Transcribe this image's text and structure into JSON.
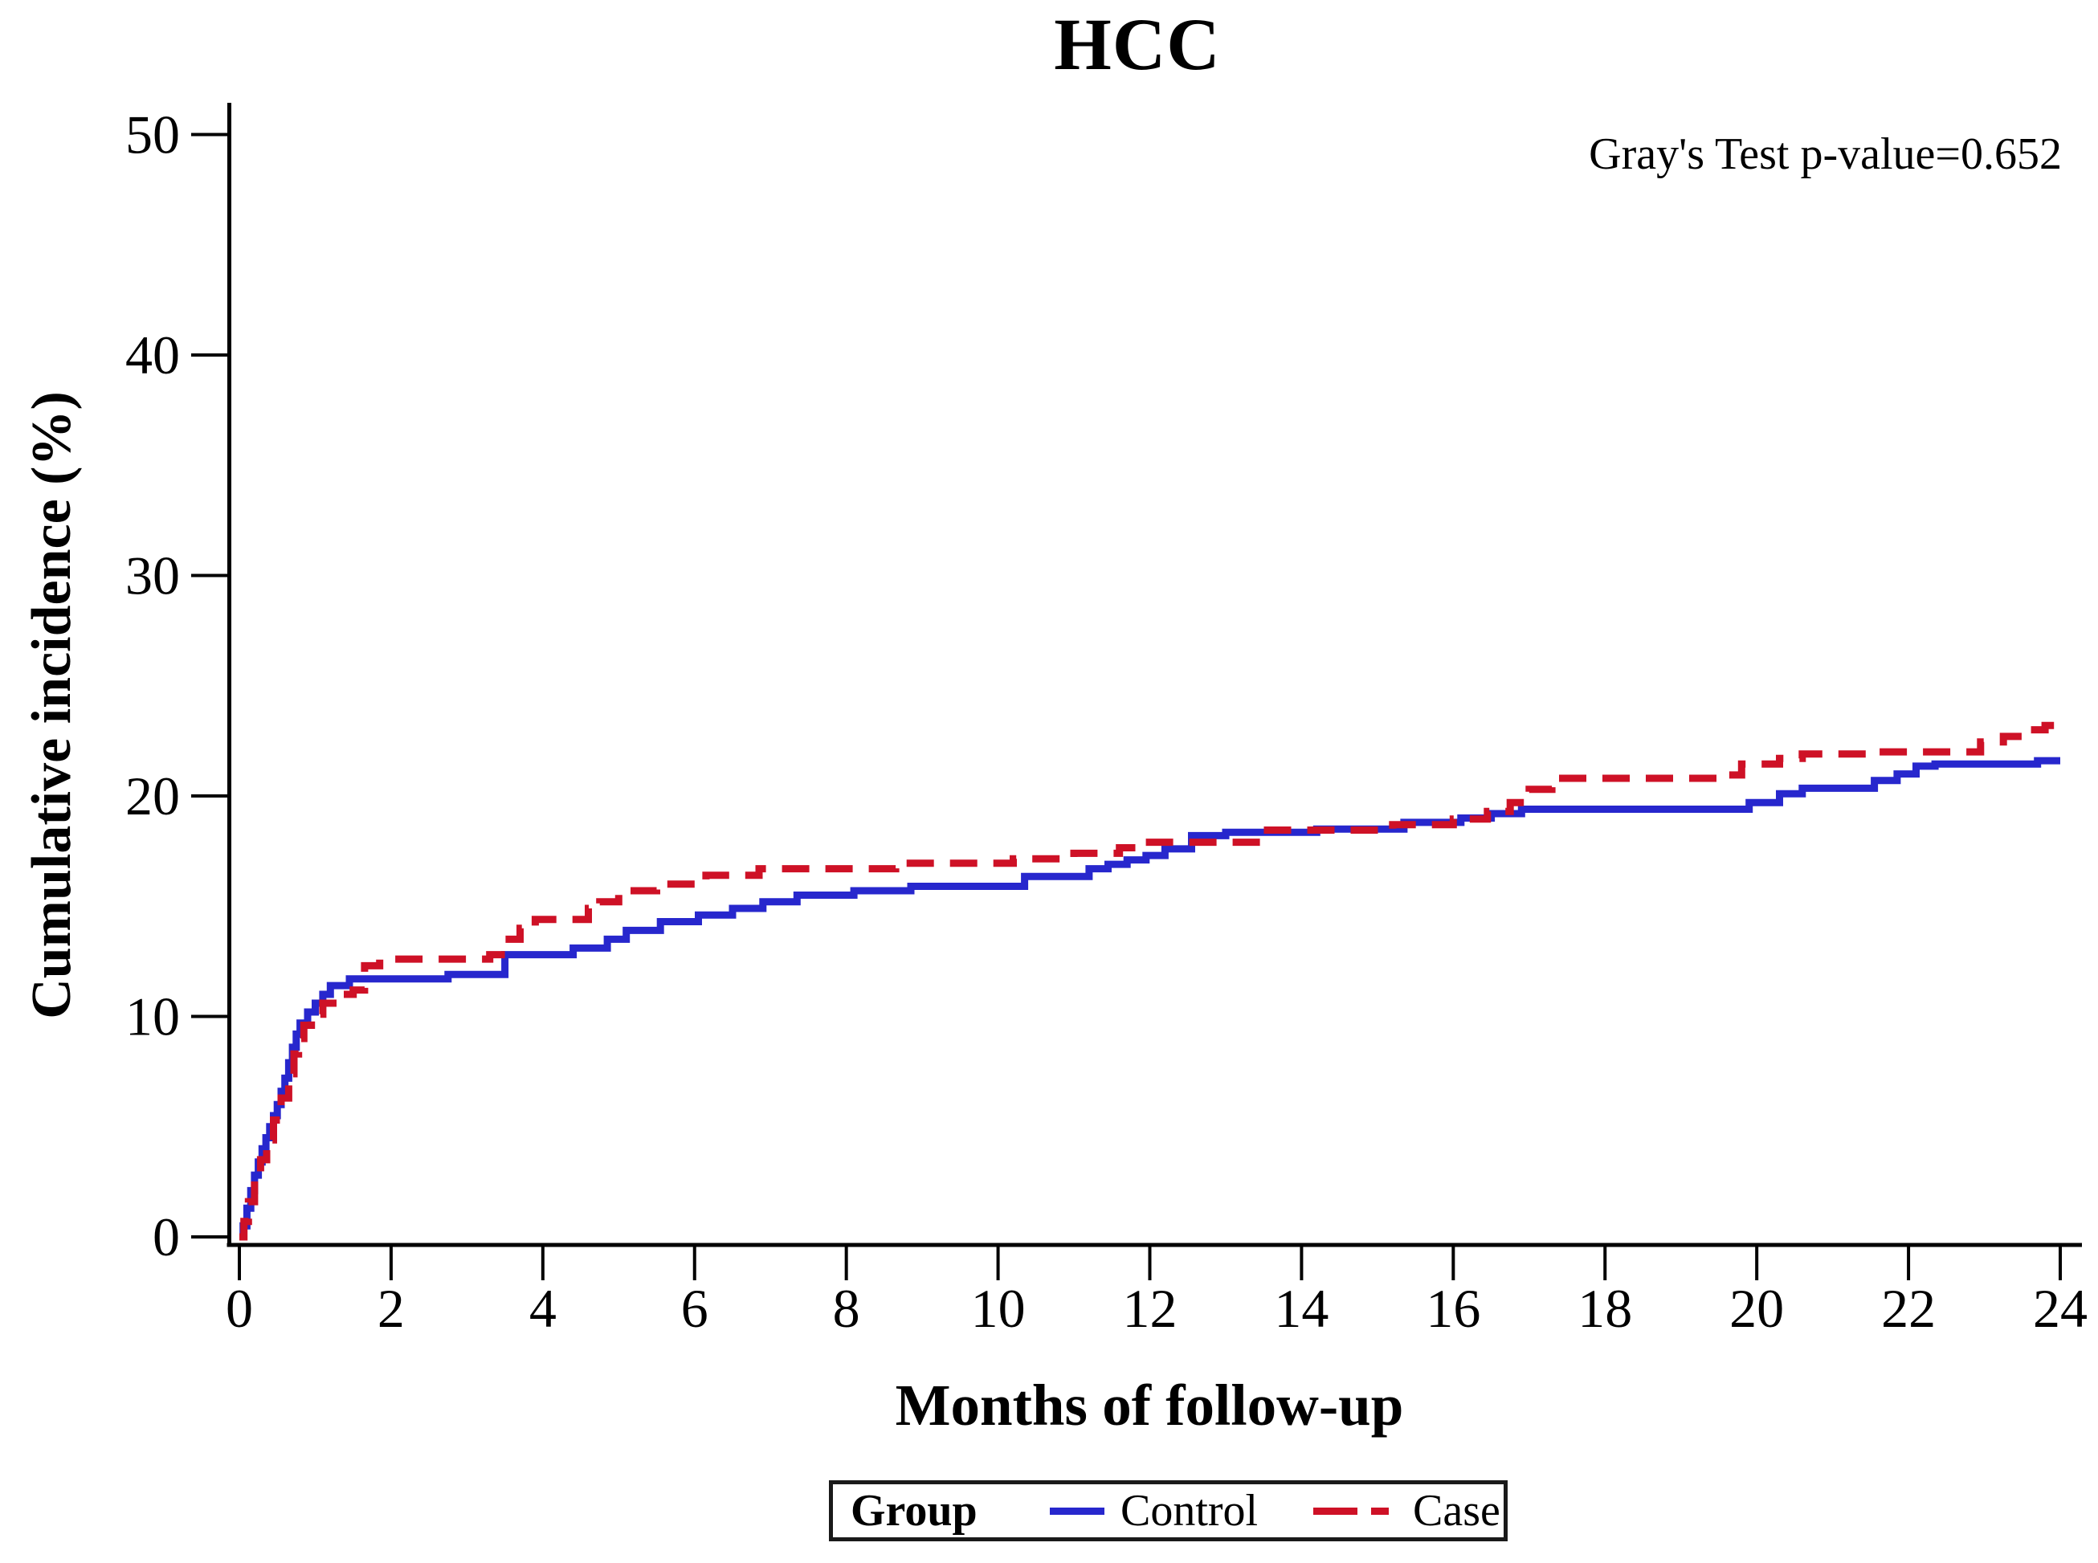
{
  "title": "HCC",
  "annotation": "Gray's Test p-value=0.652",
  "x_axis": {
    "label": "Months of follow-up",
    "ticks": [
      "0",
      "2",
      "4",
      "6",
      "8",
      "10",
      "12",
      "14",
      "16",
      "18",
      "20",
      "22",
      "24"
    ],
    "min": 0,
    "max": 24
  },
  "y_axis": {
    "label": "Cumulative incidence (%)",
    "ticks": [
      "0",
      "10",
      "20",
      "30",
      "40",
      "50"
    ],
    "min": 0,
    "max": 50
  },
  "legend": {
    "title": "Group",
    "entries": [
      {
        "label": "Control",
        "color": "#2727cd",
        "style": "solid"
      },
      {
        "label": "Case",
        "color": "#ce1126",
        "style": "dashed"
      }
    ]
  },
  "colors": {
    "control": "#2727cd",
    "case": "#ce1126",
    "axis": "#000000",
    "background": "#ffffff"
  },
  "chart_data": {
    "type": "line",
    "subtype": "step-cumulative-incidence",
    "title": "HCC",
    "xlabel": "Months of follow-up",
    "ylabel": "Cumulative incidence (%)",
    "xlim": [
      0,
      24
    ],
    "ylim": [
      0,
      50
    ],
    "grid": false,
    "legend_position": "bottom",
    "annotation": "Gray's Test p-value=0.652",
    "series": [
      {
        "name": "Control",
        "color": "#2727cd",
        "line_style": "solid",
        "points": [
          [
            0,
            0
          ],
          [
            0.05,
            0.5
          ],
          [
            0.1,
            1.3
          ],
          [
            0.15,
            2.1
          ],
          [
            0.2,
            2.8
          ],
          [
            0.25,
            3.4
          ],
          [
            0.3,
            4.0
          ],
          [
            0.35,
            4.5
          ],
          [
            0.4,
            5.0
          ],
          [
            0.45,
            5.5
          ],
          [
            0.5,
            6.0
          ],
          [
            0.55,
            6.6
          ],
          [
            0.6,
            7.2
          ],
          [
            0.65,
            7.9
          ],
          [
            0.7,
            8.6
          ],
          [
            0.75,
            9.2
          ],
          [
            0.8,
            9.7
          ],
          [
            0.9,
            10.2
          ],
          [
            1.0,
            10.6
          ],
          [
            1.1,
            11.0
          ],
          [
            1.2,
            11.4
          ],
          [
            1.45,
            11.7
          ],
          [
            2.75,
            11.9
          ],
          [
            3.5,
            12.8
          ],
          [
            4.4,
            13.1
          ],
          [
            4.85,
            13.5
          ],
          [
            5.1,
            13.9
          ],
          [
            5.55,
            14.3
          ],
          [
            6.05,
            14.6
          ],
          [
            6.5,
            14.9
          ],
          [
            6.9,
            15.2
          ],
          [
            7.35,
            15.5
          ],
          [
            8.1,
            15.7
          ],
          [
            8.85,
            15.9
          ],
          [
            10.35,
            16.35
          ],
          [
            11.2,
            16.7
          ],
          [
            11.45,
            16.9
          ],
          [
            11.7,
            17.1
          ],
          [
            11.95,
            17.3
          ],
          [
            12.2,
            17.6
          ],
          [
            12.55,
            18.2
          ],
          [
            13.0,
            18.35
          ],
          [
            14.2,
            18.5
          ],
          [
            15.35,
            18.8
          ],
          [
            16.1,
            19.0
          ],
          [
            16.5,
            19.2
          ],
          [
            16.9,
            19.4
          ],
          [
            19.9,
            19.7
          ],
          [
            20.3,
            20.1
          ],
          [
            20.6,
            20.35
          ],
          [
            21.55,
            20.7
          ],
          [
            21.85,
            21.0
          ],
          [
            22.1,
            21.35
          ],
          [
            22.35,
            21.45
          ],
          [
            23.7,
            21.6
          ],
          [
            24,
            21.6
          ]
        ]
      },
      {
        "name": "Case",
        "color": "#ce1126",
        "line_style": "dashed",
        "points": [
          [
            0,
            0
          ],
          [
            0.06,
            0.7
          ],
          [
            0.12,
            1.6
          ],
          [
            0.2,
            2.6
          ],
          [
            0.28,
            3.5
          ],
          [
            0.36,
            4.4
          ],
          [
            0.45,
            5.3
          ],
          [
            0.55,
            6.3
          ],
          [
            0.65,
            7.4
          ],
          [
            0.72,
            8.3
          ],
          [
            0.78,
            9.0
          ],
          [
            0.85,
            9.6
          ],
          [
            0.95,
            10.1
          ],
          [
            1.1,
            10.6
          ],
          [
            1.3,
            11.0
          ],
          [
            1.5,
            11.2
          ],
          [
            1.65,
            12.3
          ],
          [
            1.85,
            12.6
          ],
          [
            3.3,
            12.8
          ],
          [
            3.5,
            13.5
          ],
          [
            3.7,
            14.0
          ],
          [
            3.9,
            14.4
          ],
          [
            4.6,
            14.9
          ],
          [
            4.75,
            15.2
          ],
          [
            5.0,
            15.7
          ],
          [
            5.5,
            16.0
          ],
          [
            6.15,
            16.4
          ],
          [
            6.85,
            16.7
          ],
          [
            8.65,
            16.95
          ],
          [
            10.2,
            17.15
          ],
          [
            11.0,
            17.4
          ],
          [
            11.6,
            17.65
          ],
          [
            11.9,
            17.9
          ],
          [
            13.5,
            18.45
          ],
          [
            15.2,
            18.7
          ],
          [
            16.0,
            18.95
          ],
          [
            16.45,
            19.3
          ],
          [
            16.75,
            19.7
          ],
          [
            17.0,
            20.3
          ],
          [
            17.3,
            20.8
          ],
          [
            19.6,
            20.95
          ],
          [
            19.8,
            21.45
          ],
          [
            20.3,
            21.7
          ],
          [
            20.6,
            21.9
          ],
          [
            21.5,
            22.0
          ],
          [
            22.95,
            22.45
          ],
          [
            23.25,
            22.7
          ],
          [
            23.55,
            23.0
          ],
          [
            23.8,
            23.2
          ],
          [
            24,
            23.2
          ]
        ]
      }
    ]
  }
}
